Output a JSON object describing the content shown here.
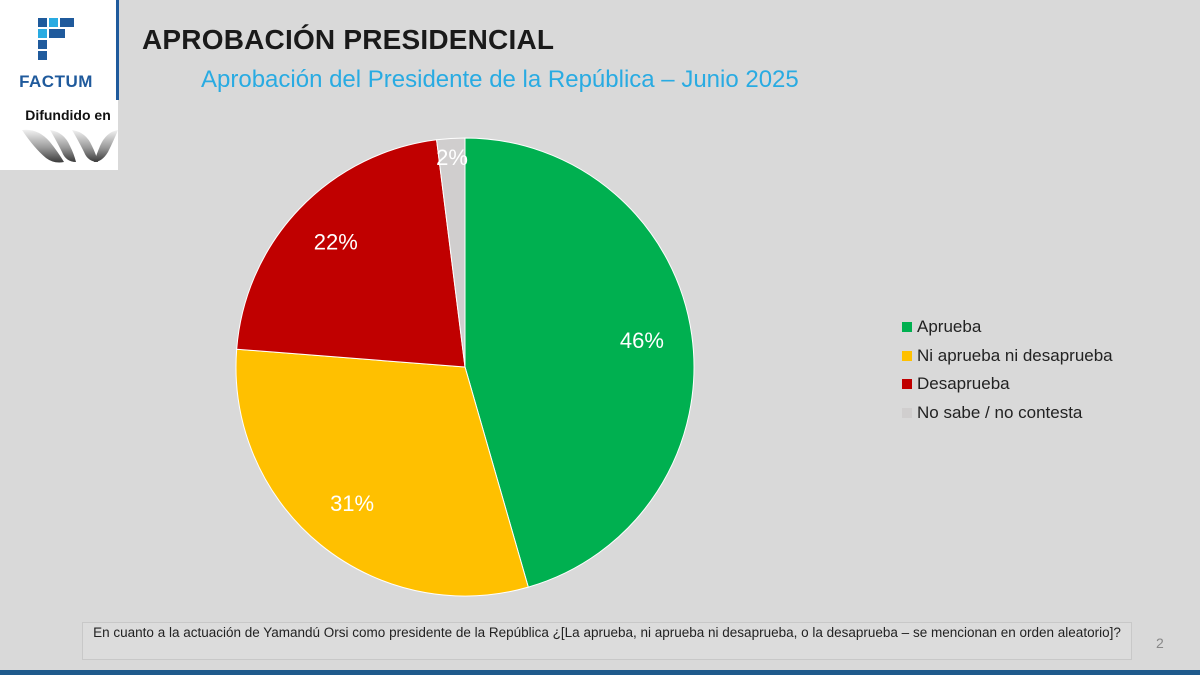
{
  "brand": {
    "name": "FACTUM",
    "disseminated_label": "Difundido en",
    "colors": {
      "primary": "#1f5a9c",
      "accent": "#29abe2"
    }
  },
  "header": {
    "title": "APROBACIÓN PRESIDENCIAL",
    "subtitle": "Aprobación del Presidente de la República – Junio 2025"
  },
  "chart_data": {
    "type": "pie",
    "title": "Aprobación del Presidente de la República – Junio 2025",
    "start_angle_deg": 0,
    "direction": "clockwise",
    "legend_position": "right",
    "slices": [
      {
        "label": "Aprueba",
        "value": 46,
        "display": "46%",
        "color": "#00b050"
      },
      {
        "label": "Ni aprueba ni desaprueba",
        "value": 31,
        "display": "31%",
        "color": "#ffc000"
      },
      {
        "label": "Desaprueba",
        "value": 22,
        "display": "22%",
        "color": "#c00000"
      },
      {
        "label": "No sabe / no contesta",
        "value": 2,
        "display": "2%",
        "color": "#d0cece"
      }
    ]
  },
  "footer": {
    "question": "En cuanto a la actuación de Yamandú Orsi como presidente de la República ¿[La aprueba, ni aprueba ni desaprueba, o la desaprueba – se mencionan en orden aleatorio]?",
    "page_number": "2"
  }
}
